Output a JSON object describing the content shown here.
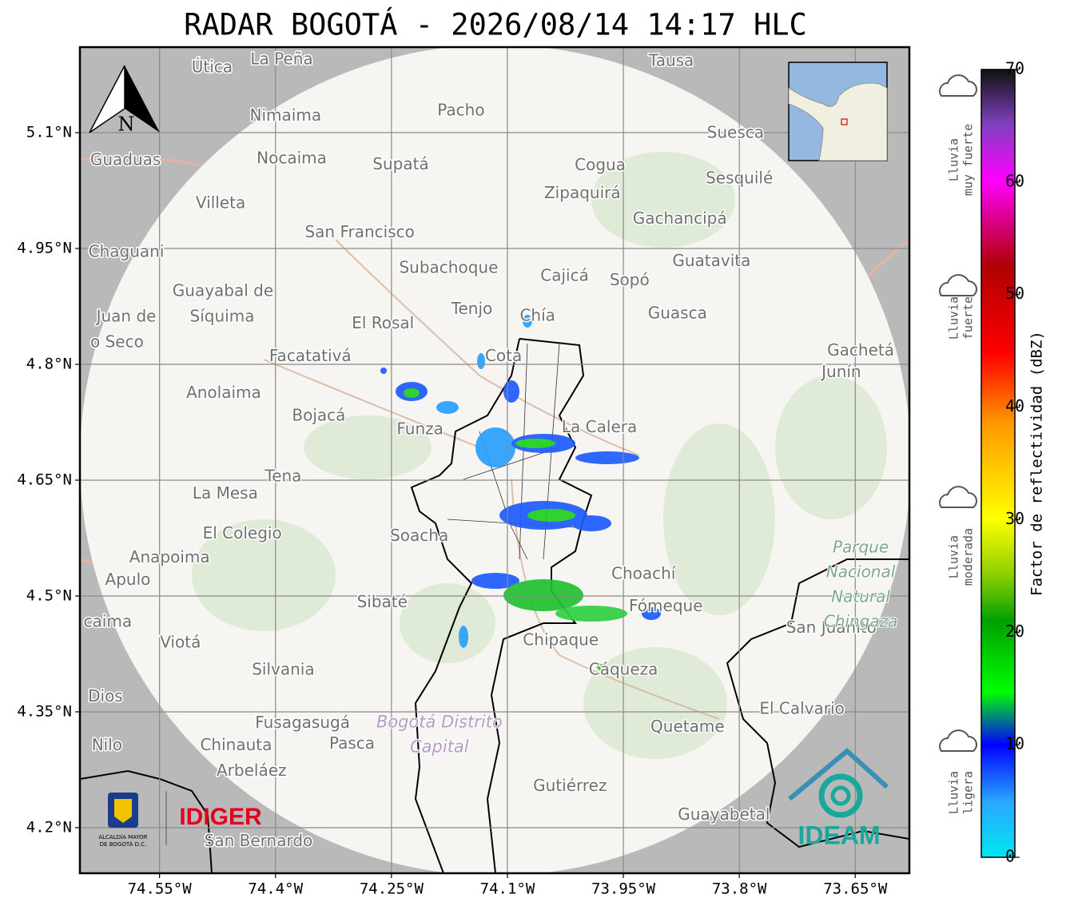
{
  "title": "RADAR BOGOTÁ - 2026/08/14 14:17 HLC",
  "map": {
    "lonlim": [
      -74.653,
      -73.58
    ],
    "latlim": [
      4.141,
      5.2107
    ],
    "xticks": [
      {
        "value": -74.55,
        "label": "74.55°W"
      },
      {
        "value": -74.4,
        "label": "74.4°W"
      },
      {
        "value": -74.25,
        "label": "74.25°W"
      },
      {
        "value": -74.1,
        "label": "74.1°W"
      },
      {
        "value": -73.95,
        "label": "73.95°W"
      },
      {
        "value": -73.8,
        "label": "73.8°W"
      },
      {
        "value": -73.65,
        "label": "73.65°W"
      }
    ],
    "yticks": [
      {
        "value": 5.1,
        "label": "5.1°N"
      },
      {
        "value": 4.95,
        "label": "4.95°N"
      },
      {
        "value": 4.8,
        "label": "4.8°N"
      },
      {
        "value": 4.65,
        "label": "4.65°N"
      },
      {
        "value": 4.5,
        "label": "4.5°N"
      },
      {
        "value": 4.35,
        "label": "4.35°N"
      },
      {
        "value": 4.2,
        "label": "4.2°N"
      }
    ],
    "north": "N",
    "places": [
      {
        "name": "La Peña",
        "lon": -74.392,
        "lat": 5.194
      },
      {
        "name": "Útica",
        "lon": -74.482,
        "lat": 5.184
      },
      {
        "name": "Tausa",
        "lon": -73.888,
        "lat": 5.192
      },
      {
        "name": "Pacho",
        "lon": -74.16,
        "lat": 5.128
      },
      {
        "name": "Nimaima",
        "lon": -74.387,
        "lat": 5.121
      },
      {
        "name": "Guaduas",
        "lon": -74.594,
        "lat": 5.064
      },
      {
        "name": "Nocaima",
        "lon": -74.379,
        "lat": 5.066
      },
      {
        "name": "Supatá",
        "lon": -74.238,
        "lat": 5.058
      },
      {
        "name": "Cogua",
        "lon": -73.98,
        "lat": 5.057
      },
      {
        "name": "Suesca",
        "lon": -73.805,
        "lat": 5.099
      },
      {
        "name": "Sesquilé",
        "lon": -73.8,
        "lat": 5.04
      },
      {
        "name": "Zipaquirá",
        "lon": -74.003,
        "lat": 5.021
      },
      {
        "name": "Villeta",
        "lon": -74.471,
        "lat": 5.008
      },
      {
        "name": "Gachancipá",
        "lon": -73.877,
        "lat": 4.988
      },
      {
        "name": "San Francisco",
        "lon": -74.291,
        "lat": 4.97
      },
      {
        "name": "Chaguani",
        "lon": -74.593,
        "lat": 4.945
      },
      {
        "name": "Guatavita",
        "lon": -73.836,
        "lat": 4.933
      },
      {
        "name": "Subachoque",
        "lon": -74.176,
        "lat": 4.924
      },
      {
        "name": "Cajicá",
        "lon": -74.026,
        "lat": 4.914
      },
      {
        "name": "Sopó",
        "lon": -73.942,
        "lat": 4.908
      },
      {
        "name": "Guayabal de",
        "lon": -74.468,
        "lat": 4.894
      },
      {
        "name": "Síquima",
        "lon": -74.469,
        "lat": 4.861
      },
      {
        "name": "Juan de",
        "lon": -74.593,
        "lat": 4.861
      },
      {
        "name": "o Seco",
        "lon": -74.605,
        "lat": 4.828
      },
      {
        "name": "Tenjo",
        "lon": -74.146,
        "lat": 4.871
      },
      {
        "name": "Chía",
        "lon": -74.061,
        "lat": 4.862
      },
      {
        "name": "Guasca",
        "lon": -73.88,
        "lat": 4.865
      },
      {
        "name": "El Rosal",
        "lon": -74.261,
        "lat": 4.852
      },
      {
        "name": "Facatativá",
        "lon": -74.355,
        "lat": 4.81
      },
      {
        "name": "Cota",
        "lon": -74.105,
        "lat": 4.81
      },
      {
        "name": "Gachetá",
        "lon": -73.643,
        "lat": 4.817
      },
      {
        "name": "Junín",
        "lon": -73.668,
        "lat": 4.789
      },
      {
        "name": "Anolaima",
        "lon": -74.467,
        "lat": 4.762
      },
      {
        "name": "Bojacá",
        "lon": -74.344,
        "lat": 4.733
      },
      {
        "name": "Funza",
        "lon": -74.213,
        "lat": 4.715
      },
      {
        "name": "La Calera",
        "lon": -73.981,
        "lat": 4.718
      },
      {
        "name": "Tena",
        "lon": -74.39,
        "lat": 4.654
      },
      {
        "name": "La Mesa",
        "lon": -74.465,
        "lat": 4.632
      },
      {
        "name": "El Colegio",
        "lon": -74.443,
        "lat": 4.58
      },
      {
        "name": "Soacha",
        "lon": -74.214,
        "lat": 4.577
      },
      {
        "name": "Anapoima",
        "lon": -74.537,
        "lat": 4.549
      },
      {
        "name": "Apulo",
        "lon": -74.591,
        "lat": 4.52
      },
      {
        "name": "Choachí",
        "lon": -73.924,
        "lat": 4.528
      },
      {
        "name": "Sibaté",
        "lon": -74.262,
        "lat": 4.491
      },
      {
        "name": "Fómeque",
        "lon": -73.895,
        "lat": 4.486
      },
      {
        "name": "San Juanito",
        "lon": -73.681,
        "lat": 4.458
      },
      {
        "name": "caima",
        "lon": -74.617,
        "lat": 4.466
      },
      {
        "name": "Viotá",
        "lon": -74.523,
        "lat": 4.439
      },
      {
        "name": "Chipaque",
        "lon": -74.031,
        "lat": 4.442
      },
      {
        "name": "Silvania",
        "lon": -74.39,
        "lat": 4.404
      },
      {
        "name": "Cáqueza",
        "lon": -73.95,
        "lat": 4.404
      },
      {
        "name": "Dios",
        "lon": -74.62,
        "lat": 4.369
      },
      {
        "name": "El Calvario",
        "lon": -73.719,
        "lat": 4.353
      },
      {
        "name": "Fusagasugá",
        "lon": -74.365,
        "lat": 4.335
      },
      {
        "name": "Quetame",
        "lon": -73.867,
        "lat": 4.33
      },
      {
        "name": "Chinauta",
        "lon": -74.451,
        "lat": 4.306
      },
      {
        "name": "Pasca",
        "lon": -74.301,
        "lat": 4.308
      },
      {
        "name": "Nilo",
        "lon": -74.618,
        "lat": 4.306
      },
      {
        "name": "Arbeláez",
        "lon": -74.431,
        "lat": 4.273
      },
      {
        "name": "Gutiérrez",
        "lon": -74.019,
        "lat": 4.253
      },
      {
        "name": "Guayabetal",
        "lon": -73.82,
        "lat": 4.216
      },
      {
        "name": "San Bernardo",
        "lon": -74.422,
        "lat": 4.182
      }
    ],
    "areas": [
      {
        "kind": "park",
        "lines": [
          "Parque",
          "Nacional",
          "Natural",
          "Chingaza"
        ],
        "lon": -73.643,
        "lat": 4.562
      },
      {
        "kind": "district",
        "lines": [
          "Bogotá Distrito",
          "Capital"
        ],
        "lon": -74.188,
        "lat": 4.336
      }
    ]
  },
  "colorbar": {
    "label": "Factor de reflectividad (dBZ)",
    "lim": [
      0,
      70
    ],
    "ticks": [
      0,
      10,
      20,
      30,
      40,
      50,
      60,
      70
    ]
  },
  "rain_levels": [
    {
      "lines": [
        "Lluvia",
        "muy fuerte"
      ]
    },
    {
      "lines": [
        "Lluvia",
        "fuerte"
      ]
    },
    {
      "lines": [
        "Lluvia",
        "moderada"
      ]
    },
    {
      "lines": [
        "Lluvia",
        "ligera"
      ]
    }
  ],
  "logos": {
    "alcaldia": [
      "ALCALDÍA MAYOR",
      "DE BOGOTÁ D.C."
    ],
    "idiger": "IDIGER",
    "ideam": "IDEAM"
  }
}
